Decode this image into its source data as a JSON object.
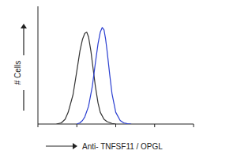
{
  "chart_data": {
    "type": "line",
    "x_label": "Anti- TNFSF11 / OPGL",
    "y_label": "# Cells",
    "log": "x",
    "tick_labels": false,
    "xlim": [
      1,
      10000
    ],
    "xticks": [
      1,
      10,
      100,
      1000,
      10000
    ],
    "ylim": [
      0,
      100
    ],
    "series": [
      {
        "color": "#333333",
        "x": [
          3,
          4,
          5,
          6,
          8,
          10,
          12,
          14,
          16,
          18,
          20,
          23,
          26,
          30,
          35,
          40,
          50,
          60,
          80,
          100
        ],
        "values": [
          0,
          1,
          4,
          10,
          25,
          45,
          62,
          72,
          77,
          78,
          74,
          62,
          48,
          32,
          18,
          10,
          4,
          2,
          0.5,
          0
        ]
      },
      {
        "color": "#2b3fd1",
        "x": [
          10,
          12,
          14,
          16,
          20,
          25,
          30,
          35,
          40,
          45,
          50,
          55,
          60,
          70,
          80,
          100,
          130,
          160,
          200,
          250
        ],
        "values": [
          0,
          1,
          3,
          6,
          15,
          32,
          52,
          68,
          78,
          82,
          80,
          72,
          62,
          42,
          26,
          10,
          3,
          1,
          0.3,
          0
        ]
      }
    ]
  }
}
